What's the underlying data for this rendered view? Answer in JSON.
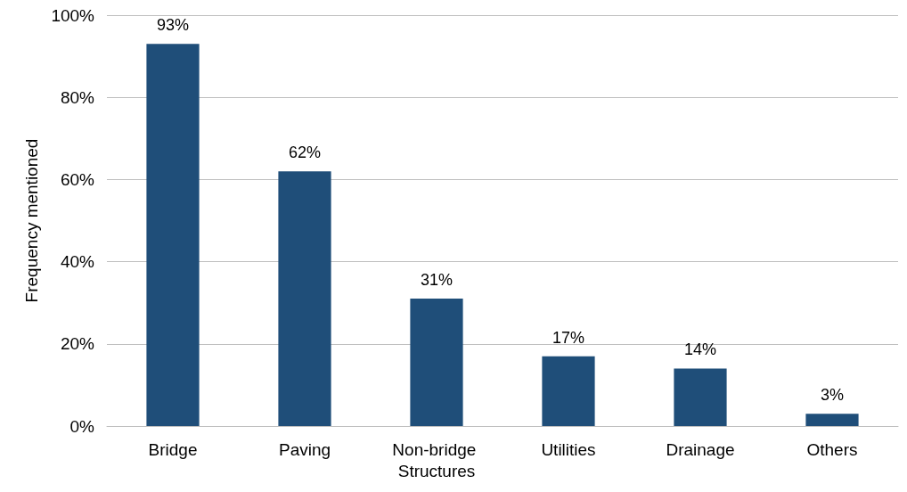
{
  "chart_data": {
    "type": "bar",
    "ylabel": "Frequency mentioned",
    "categories": [
      "Bridge",
      "Paving",
      "Non-bridge Structures",
      "Utilities",
      "Drainage",
      "Others"
    ],
    "values": [
      93,
      62,
      31,
      17,
      14,
      3
    ],
    "value_labels": [
      "93%",
      "62%",
      "31%",
      "17%",
      "14%",
      "3%"
    ],
    "color": "#1f4e79",
    "ylim": [
      0,
      100
    ],
    "yticks": [
      {
        "value": 0,
        "label": "0%"
      },
      {
        "value": 20,
        "label": "20%"
      },
      {
        "value": 40,
        "label": "40%"
      },
      {
        "value": 60,
        "label": "60%"
      },
      {
        "value": 80,
        "label": "80%"
      },
      {
        "value": 100,
        "label": "100%"
      }
    ],
    "grid": "y"
  }
}
